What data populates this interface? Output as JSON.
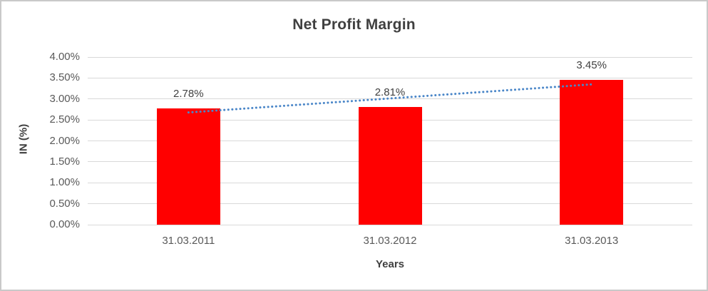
{
  "chart_data": {
    "type": "bar",
    "title": "Net Profit Margin",
    "xlabel": "Years",
    "ylabel": "IN (%)",
    "categories": [
      "31.03.2011",
      "31.03.2012",
      "31.03.2013"
    ],
    "values": [
      2.78,
      2.81,
      3.45
    ],
    "value_labels": [
      "2.78%",
      "2.81%",
      "3.45%"
    ],
    "ylim": [
      0,
      4
    ],
    "ytick_labels": [
      "0.00%",
      "0.50%",
      "1.00%",
      "1.50%",
      "2.00%",
      "2.50%",
      "3.00%",
      "3.50%",
      "4.00%"
    ],
    "grid": true,
    "legend": "none",
    "bar_color": "#ff0000",
    "gridline_color": "#d9d9d9",
    "axis_text_color": "#595959",
    "title_color": "#404040",
    "trendline": {
      "style": "dotted",
      "color": "#4a86c8",
      "start_value": 2.678,
      "end_value": 3.348
    }
  }
}
